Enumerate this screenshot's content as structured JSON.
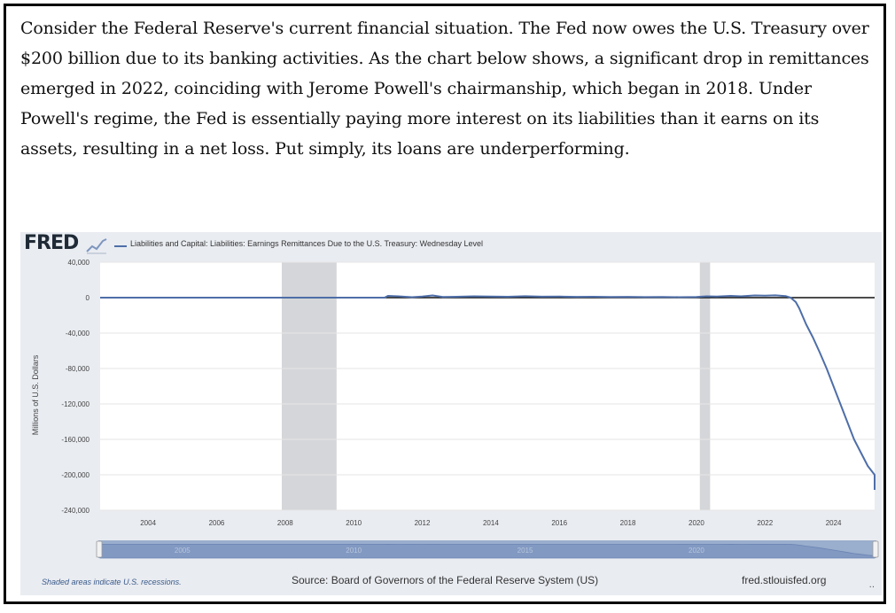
{
  "paragraph": "Consider the Federal Reserve's current financial situation. The Fed now owes the U.S. Treasury over $200 billion due to its banking activities. As the chart below shows, a significant drop in remittances emerged in 2022, coinciding with Jerome Powell's chairmanship, which began in 2018. Under Powell's regime, the Fed is essentially paying more interest on its liabilities than it earns on its assets, resulting in a net loss. Put simply, its loans are underperforming.",
  "fred": {
    "logo": "FRED",
    "recession_note": "Shaded areas indicate U.S. recessions.",
    "source": "Source: Board of Governors of the Federal Reserve System (US)",
    "site": "fred.stlouisfed.org",
    "dots": "..",
    "navigator_labels": [
      "2005",
      "2010",
      "2015",
      "2020"
    ]
  },
  "colors": {
    "series": "#4e6ea8",
    "recession": "#d5d6d9",
    "panel": "#e9ecf1",
    "navigator": "#9aaecd"
  },
  "chart_data": {
    "type": "line",
    "title": "",
    "legend": [
      "Liabilities and Capital: Liabilities: Earnings Remittances Due to the U.S. Treasury: Wednesday Level"
    ],
    "legend_position": "top-left",
    "ylabel": "Millions of U.S. Dollars",
    "xlabel": "",
    "xlim": [
      2002.6,
      2025.2
    ],
    "ylim": [
      -240000,
      40000
    ],
    "yticks": [
      40000,
      0,
      -40000,
      -80000,
      -120000,
      -160000,
      -200000,
      -240000
    ],
    "ytick_labels": [
      "40,000",
      "0",
      "-40,000",
      "-80,000",
      "-120,000",
      "-160,000",
      "-200,000",
      "-240,000"
    ],
    "xticks": [
      2004,
      2006,
      2008,
      2010,
      2012,
      2014,
      2016,
      2018,
      2020,
      2022,
      2024
    ],
    "xtick_labels": [
      "2004",
      "2006",
      "2008",
      "2010",
      "2012",
      "2014",
      "2016",
      "2018",
      "2020",
      "2022",
      "2024"
    ],
    "recessions": [
      [
        2007.9,
        2009.5
      ],
      [
        2020.1,
        2020.4
      ]
    ],
    "zero_line": true,
    "grid": "horizontal",
    "series": [
      {
        "values": [
          [
            2002.6,
            0
          ],
          [
            2010.9,
            0
          ],
          [
            2011.0,
            2000
          ],
          [
            2011.3,
            1500
          ],
          [
            2011.7,
            500
          ],
          [
            2012.0,
            1200
          ],
          [
            2012.3,
            2500
          ],
          [
            2012.6,
            800
          ],
          [
            2013.0,
            1000
          ],
          [
            2013.5,
            1500
          ],
          [
            2014.0,
            1200
          ],
          [
            2014.5,
            1000
          ],
          [
            2015.0,
            1600
          ],
          [
            2015.5,
            1100
          ],
          [
            2016.0,
            1200
          ],
          [
            2016.5,
            900
          ],
          [
            2017.0,
            1000
          ],
          [
            2017.5,
            700
          ],
          [
            2018.0,
            900
          ],
          [
            2018.5,
            600
          ],
          [
            2019.0,
            800
          ],
          [
            2019.5,
            500
          ],
          [
            2020.0,
            700
          ],
          [
            2020.3,
            1500
          ],
          [
            2020.6,
            1200
          ],
          [
            2021.0,
            2000
          ],
          [
            2021.3,
            1500
          ],
          [
            2021.7,
            2500
          ],
          [
            2022.0,
            2200
          ],
          [
            2022.3,
            2600
          ],
          [
            2022.6,
            1800
          ],
          [
            2022.75,
            0
          ],
          [
            2022.9,
            -5000
          ],
          [
            2023.0,
            -12000
          ],
          [
            2023.2,
            -30000
          ],
          [
            2023.4,
            -45000
          ],
          [
            2023.6,
            -62000
          ],
          [
            2023.8,
            -80000
          ],
          [
            2024.0,
            -100000
          ],
          [
            2024.2,
            -120000
          ],
          [
            2024.4,
            -140000
          ],
          [
            2024.6,
            -160000
          ],
          [
            2024.8,
            -175000
          ],
          [
            2025.0,
            -190000
          ],
          [
            2025.2,
            -200000
          ],
          [
            2025.4,
            -213000
          ],
          [
            2025.5,
            -217000
          ]
        ]
      }
    ]
  }
}
